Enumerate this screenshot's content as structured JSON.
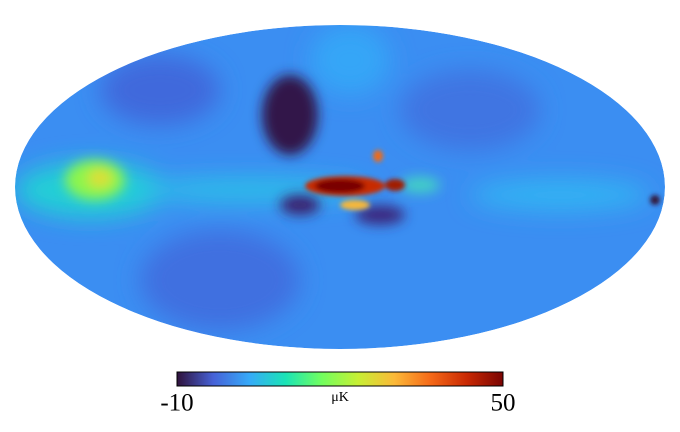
{
  "chart_data": {
    "type": "mollweide",
    "colorbar": {
      "label": "μK",
      "clim": [
        -10,
        50
      ],
      "ticks": [
        -10,
        50
      ],
      "colormap": [
        "#30123b",
        "#4662d7",
        "#36aaf9",
        "#1ae4b6",
        "#72fe5e",
        "#c7ef34",
        "#fbb938",
        "#f56918",
        "#c92903",
        "#7a0403"
      ]
    }
  }
}
